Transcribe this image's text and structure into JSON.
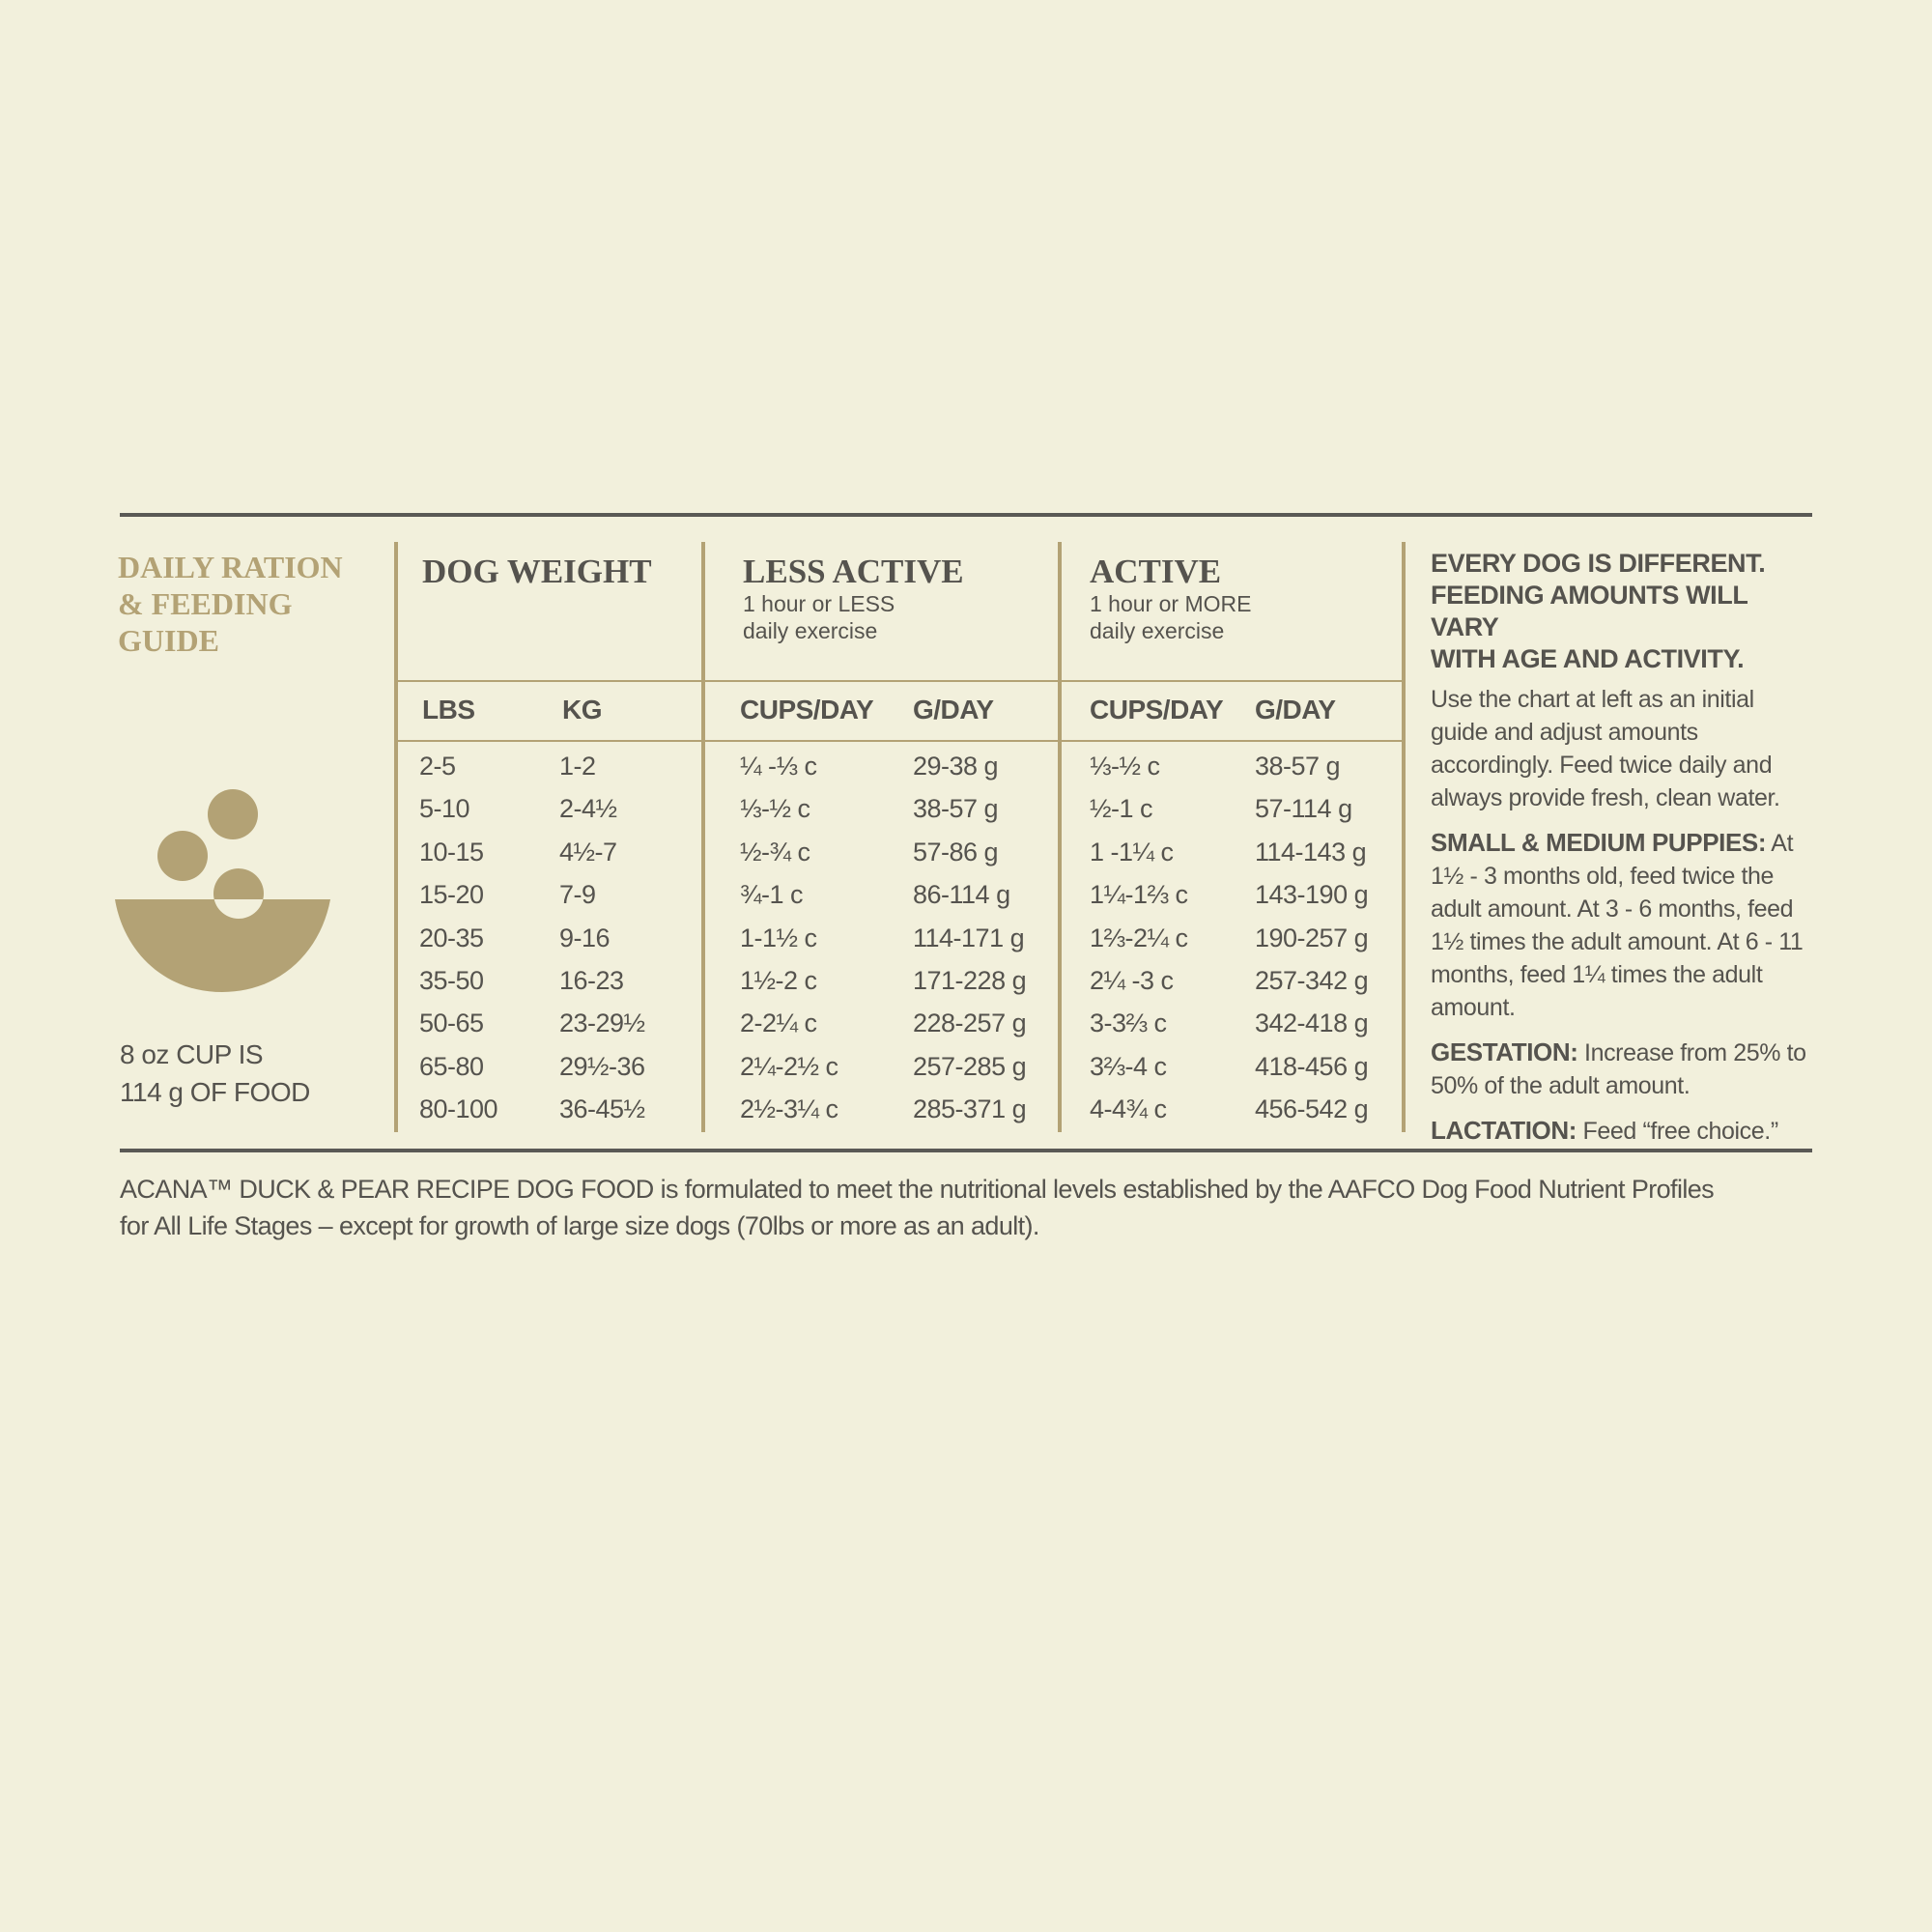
{
  "title": [
    "DAILY RATION",
    "& FEEDING",
    "GUIDE"
  ],
  "cup_note": [
    "8 oz CUP IS",
    "114 g OF FOOD"
  ],
  "table": {
    "groups": [
      {
        "title": "DOG WEIGHT"
      },
      {
        "title": "LESS ACTIVE",
        "subtitle": [
          "1 hour or LESS",
          "daily exercise"
        ]
      },
      {
        "title": "ACTIVE",
        "subtitle": [
          "1 hour or MORE",
          "daily exercise"
        ]
      }
    ],
    "columns": [
      "LBS",
      "KG",
      "CUPS/DAY",
      "G/DAY",
      "CUPS/DAY",
      "G/DAY"
    ],
    "rows": [
      [
        "2-5",
        "1-2",
        "¼ -⅓ c",
        "29-38 g",
        "⅓-½ c",
        "38-57 g"
      ],
      [
        "5-10",
        "2-4½",
        "⅓-½ c",
        "38-57 g",
        "½-1 c",
        "57-114 g"
      ],
      [
        "10-15",
        "4½-7",
        "½-¾ c",
        "57-86 g",
        "1 -1¼ c",
        "114-143 g"
      ],
      [
        "15-20",
        "7-9",
        "¾-1 c",
        "86-114 g",
        "1¼-1⅔ c",
        "143-190 g"
      ],
      [
        "20-35",
        "9-16",
        "1-1½ c",
        "114-171 g",
        "1⅔-2¼ c",
        "190-257 g"
      ],
      [
        "35-50",
        "16-23",
        "1½-2 c",
        "171-228 g",
        "2¼ -3 c",
        "257-342 g"
      ],
      [
        "50-65",
        "23-29½",
        "2-2¼ c",
        "228-257 g",
        "3-3⅔ c",
        "342-418 g"
      ],
      [
        "65-80",
        "29½-36",
        "2¼-2½ c",
        "257-285 g",
        "3⅔-4 c",
        "418-456 g"
      ],
      [
        "80-100",
        "36-45½",
        "2½-3¼ c",
        "285-371 g",
        "4-4¾ c",
        "456-542 g"
      ]
    ]
  },
  "notes": {
    "heading": [
      "EVERY DOG IS DIFFERENT.",
      "FEEDING AMOUNTS WILL VARY",
      "WITH AGE AND ACTIVITY."
    ],
    "intro": "Use the chart at left as an initial guide and adjust amounts accordingly. Feed twice daily and always provide fresh, clean water.",
    "items": [
      {
        "label": "SMALL & MEDIUM PUPPIES:",
        "text": "At 1½ - 3 months old, feed twice the adult amount. At 3 - 6 months, feed 1½ times the adult amount. At 6 - 11 months, feed 1¼ times the adult amount."
      },
      {
        "label": "GESTATION:",
        "text": "Increase from 25% to 50% of the adult amount."
      },
      {
        "label": "LACTATION:",
        "text": "Feed “free choice.”"
      }
    ]
  },
  "footer": [
    "ACANA™ DUCK & PEAR RECIPE DOG FOOD is formulated to meet the nutritional levels established by the AAFCO Dog Food Nutrient Profiles",
    "for All Life Stages – except for growth of large size dogs (70lbs or more as an adult)."
  ]
}
